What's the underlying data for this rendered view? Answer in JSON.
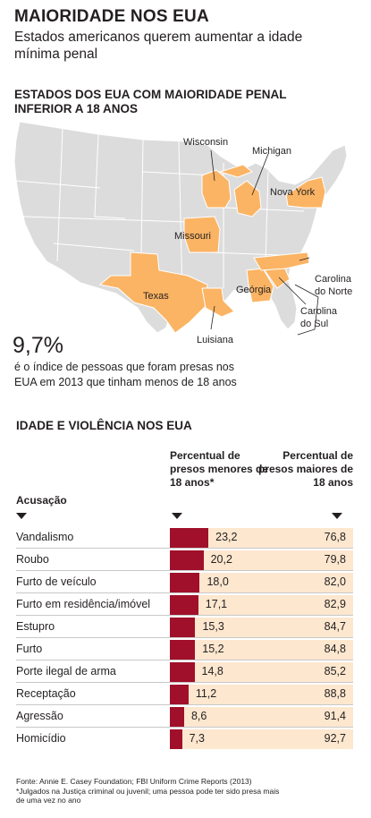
{
  "title": "MAIORIDADE NOS EUA",
  "subtitle": "Estados americanos querem aumentar a idade mínima penal",
  "map": {
    "heading": "ESTADOS DOS EUA COM MAIORIDADE PENAL INFERIOR A 18 ANOS",
    "highlight_color": "#fbb464",
    "base_color": "#dcdcdc",
    "states": [
      "Wisconsin",
      "Michigan",
      "Nova York",
      "Missouri",
      "Texas",
      "Geórgia",
      "Carolina do Norte",
      "Carolina do Sul",
      "Luisiana"
    ]
  },
  "stat": {
    "value": "9,7%",
    "text": "é o índice de pessoas que foram presas nos EUA em 2013 que tinham menos de 18 anos"
  },
  "table_heading": "IDADE E VIOLÊNCIA NOS EUA",
  "chart_data": {
    "type": "bar",
    "title": "IDADE E VIOLÊNCIA NOS EUA",
    "category_header": "Acusação",
    "categories": [
      "Vandalismo",
      "Roubo",
      "Furto de veículo",
      "Furto em residência/imóvel",
      "Estupro",
      "Furto",
      "Porte ilegal de arma",
      "Receptação",
      "Agressão",
      "Homicídio"
    ],
    "series": [
      {
        "name": "Percentual de presos menores de 18 anos*",
        "values": [
          23.2,
          20.2,
          18.0,
          17.1,
          15.3,
          15.2,
          14.8,
          11.2,
          8.6,
          7.3
        ],
        "color": "#a0102a"
      },
      {
        "name": "Percentual de presos maiores de 18 anos",
        "values": [
          76.8,
          79.8,
          82.0,
          82.9,
          84.7,
          84.8,
          85.2,
          88.8,
          91.4,
          92.7
        ],
        "color": "#fde7cf"
      }
    ],
    "value_labels_under": [
      "23,2",
      "20,2",
      "18,0",
      "17,1",
      "15,3",
      "15,2",
      "14,8",
      "11,2",
      "8,6",
      "7,3"
    ],
    "value_labels_over": [
      "76,8",
      "79,8",
      "82,0",
      "82,9",
      "84,7",
      "84,8",
      "85,2",
      "88,8",
      "91,4",
      "92,7"
    ],
    "ylim": [
      0,
      100
    ]
  },
  "source": "Fonte: Annie E. Casey Foundation; FBI Uniform Crime Reports (2013)",
  "footnote": "*Julgados na Justiça criminal ou juvenil; uma pessoa pode ter sido presa mais de uma vez no ano"
}
